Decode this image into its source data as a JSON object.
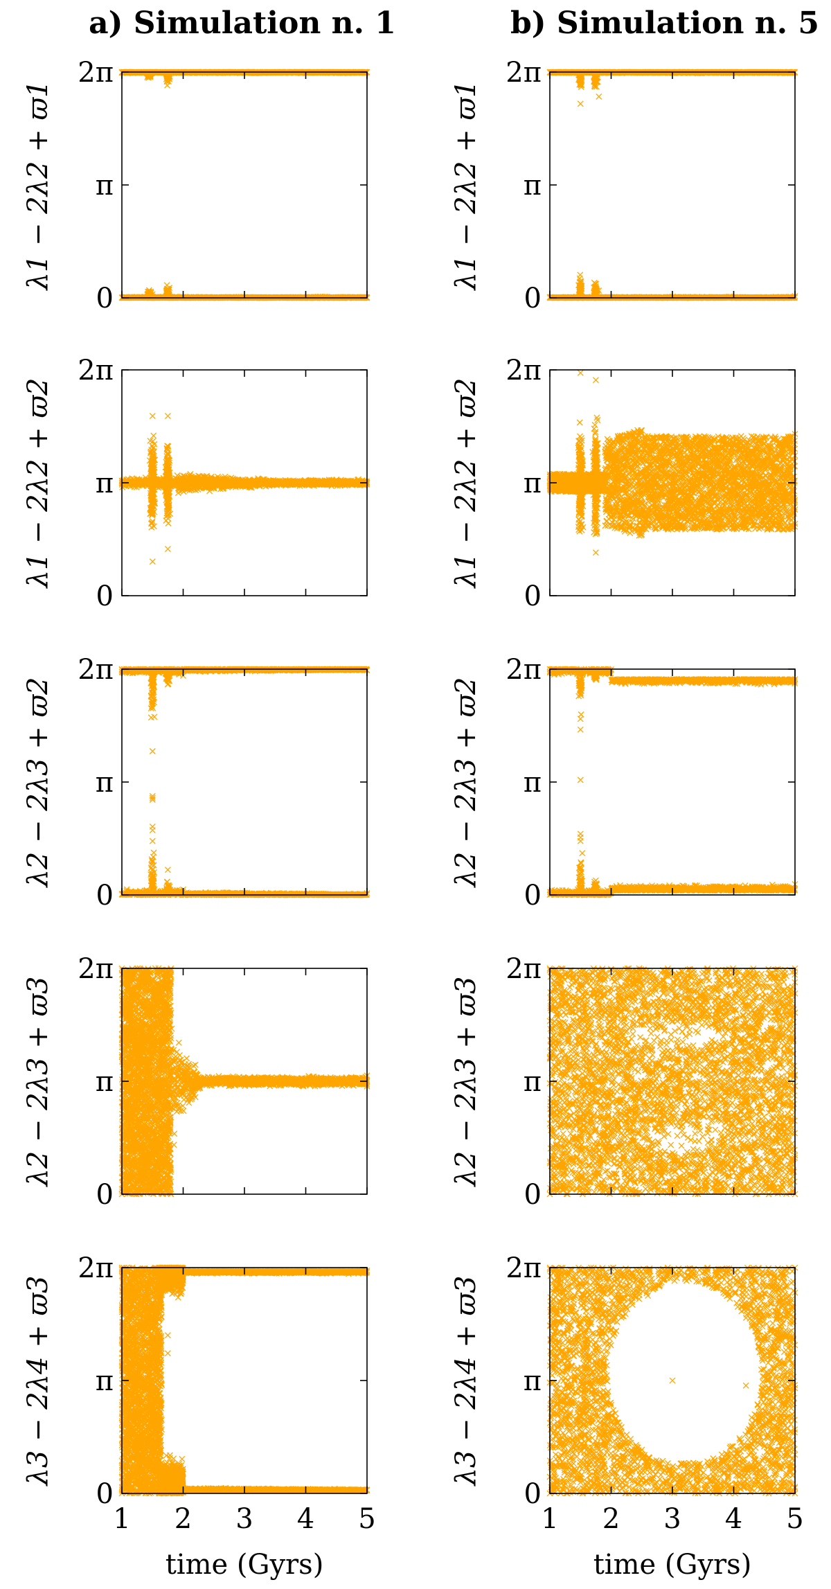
{
  "titles": [
    "a) Simulation n. 1",
    "b) Simulation n. 5"
  ],
  "color": "#FFA500",
  "marker": "x",
  "chart_data": [
    {
      "type": "scatter",
      "column": 0,
      "row": 0,
      "ylabel": "λ1 − 2λ2 + ϖ1",
      "xlabel": "",
      "xlim": [
        1,
        5
      ],
      "ylim": [
        0,
        6.2832
      ],
      "xticks": [
        1,
        2,
        3,
        4,
        5
      ],
      "yticks": [
        "0",
        "π",
        "2π"
      ],
      "pattern": "edges",
      "description_points": [
        [
          1,
          6.28
        ],
        [
          1.45,
          6.2
        ],
        [
          1.75,
          6.1
        ],
        [
          1.5,
          0.1
        ],
        [
          1.75,
          0.1
        ],
        [
          5,
          0.0
        ],
        [
          5,
          6.28
        ]
      ]
    },
    {
      "type": "scatter",
      "column": 1,
      "row": 0,
      "ylabel": "λ1 − 2λ2 + ϖ1",
      "xlabel": "",
      "xlim": [
        1,
        5
      ],
      "ylim": [
        0,
        6.2832
      ],
      "xticks": [
        1,
        2,
        3,
        4,
        5
      ],
      "yticks": [
        "0",
        "π",
        "2π"
      ],
      "pattern": "edges",
      "description_points": [
        [
          1,
          6.28
        ],
        [
          1.5,
          5.4
        ],
        [
          1.8,
          5.6
        ],
        [
          1.5,
          0.1
        ],
        [
          1.8,
          0.2
        ],
        [
          5,
          0.05
        ],
        [
          5,
          6.28
        ]
      ]
    },
    {
      "type": "scatter",
      "column": 0,
      "row": 1,
      "ylabel": "λ1 − 2λ2 + ϖ2",
      "xlabel": "",
      "xlim": [
        1,
        5
      ],
      "ylim": [
        0,
        6.2832
      ],
      "xticks": [
        1,
        2,
        3,
        4,
        5
      ],
      "yticks": [
        "0",
        "π",
        "2π"
      ],
      "pattern": "narrow-band",
      "description_points": [
        [
          1,
          3.14
        ],
        [
          1.5,
          5.0
        ],
        [
          1.5,
          0.95
        ],
        [
          1.75,
          5.0
        ],
        [
          1.75,
          1.3
        ],
        [
          2.5,
          3.14
        ],
        [
          5,
          3.14
        ]
      ]
    },
    {
      "type": "scatter",
      "column": 1,
      "row": 1,
      "ylabel": "λ1 − 2λ2 + ϖ2",
      "xlabel": "",
      "xlim": [
        1,
        5
      ],
      "ylim": [
        0,
        6.2832
      ],
      "xticks": [
        1,
        2,
        3,
        4,
        5
      ],
      "yticks": [
        "0",
        "π",
        "2π"
      ],
      "pattern": "wide-band",
      "description_points": [
        [
          1,
          3.14
        ],
        [
          1.5,
          6.2
        ],
        [
          1.75,
          6.0
        ],
        [
          1.75,
          1.2
        ],
        [
          2.5,
          4.6
        ],
        [
          2.5,
          1.7
        ],
        [
          5,
          4.5
        ],
        [
          5,
          2.0
        ]
      ]
    },
    {
      "type": "scatter",
      "column": 0,
      "row": 2,
      "ylabel": "λ2 − 2λ3 + ϖ2",
      "xlabel": "",
      "xlim": [
        1,
        5
      ],
      "ylim": [
        0,
        6.2832
      ],
      "xticks": [
        1,
        2,
        3,
        4,
        5
      ],
      "yticks": [
        "0",
        "π",
        "2π"
      ],
      "pattern": "edges",
      "description_points": [
        [
          1,
          6.28
        ],
        [
          1.5,
          4.0
        ],
        [
          1.5,
          1.9
        ],
        [
          1.5,
          2.7
        ],
        [
          1.75,
          0.7
        ],
        [
          2,
          6.1
        ],
        [
          2,
          0.15
        ],
        [
          5,
          6.25
        ],
        [
          5,
          0.05
        ]
      ]
    },
    {
      "type": "scatter",
      "column": 1,
      "row": 2,
      "ylabel": "λ2 − 2λ3 + ϖ2",
      "xlabel": "",
      "xlim": [
        1,
        5
      ],
      "ylim": [
        0,
        6.2832
      ],
      "xticks": [
        1,
        2,
        3,
        4,
        5
      ],
      "yticks": [
        "0",
        "π",
        "2π"
      ],
      "pattern": "edges",
      "description_points": [
        [
          1,
          6.28
        ],
        [
          1.5,
          4.9
        ],
        [
          1.5,
          3.2
        ],
        [
          1.5,
          1.6
        ],
        [
          1.75,
          0.4
        ],
        [
          5,
          6.0
        ],
        [
          5,
          0.3
        ]
      ]
    },
    {
      "type": "scatter",
      "column": 0,
      "row": 3,
      "ylabel": "λ2 − 2λ3 + ϖ3",
      "xlabel": "",
      "xlim": [
        1,
        5
      ],
      "ylim": [
        0,
        6.2832
      ],
      "xticks": [
        1,
        2,
        3,
        4,
        5
      ],
      "yticks": [
        "0",
        "π",
        "2π"
      ],
      "pattern": "circulate-then-band",
      "description_points": [
        [
          1,
          0.0
        ],
        [
          1,
          6.28
        ],
        [
          1.8,
          0.0
        ],
        [
          1.8,
          6.28
        ],
        [
          2.2,
          3.6
        ],
        [
          2.2,
          2.7
        ],
        [
          5,
          3.3
        ],
        [
          5,
          3.0
        ]
      ]
    },
    {
      "type": "scatter",
      "column": 1,
      "row": 3,
      "ylabel": "λ2 − 2λ3 + ϖ3",
      "xlabel": "",
      "xlim": [
        1,
        5
      ],
      "ylim": [
        0,
        6.2832
      ],
      "xticks": [
        1,
        2,
        3,
        4,
        5
      ],
      "yticks": [
        "0",
        "π",
        "2π"
      ],
      "pattern": "fill",
      "description_points": [
        [
          1,
          0.0
        ],
        [
          1,
          6.28
        ],
        [
          3,
          3.14
        ],
        [
          5,
          0.0
        ],
        [
          5,
          6.28
        ]
      ]
    },
    {
      "type": "scatter",
      "column": 0,
      "row": 4,
      "ylabel": "λ3 − 2λ4 + ϖ3",
      "xlabel": "time (Gyrs)",
      "xlim": [
        1,
        5
      ],
      "ylim": [
        0,
        6.2832
      ],
      "xticks": [
        1,
        2,
        3,
        4,
        5
      ],
      "yticks": [
        "0",
        "π",
        "2π"
      ],
      "pattern": "circulate-then-edges",
      "description_points": [
        [
          1,
          0.0
        ],
        [
          1,
          6.28
        ],
        [
          1.5,
          3.14
        ],
        [
          1.75,
          4.4
        ],
        [
          1.75,
          3.9
        ],
        [
          2,
          6.15
        ],
        [
          2,
          0.15
        ],
        [
          5,
          6.2
        ],
        [
          5,
          0.1
        ]
      ]
    },
    {
      "type": "scatter",
      "column": 1,
      "row": 4,
      "ylabel": "λ3 − 2λ4 + ϖ3",
      "xlabel": "time (Gyrs)",
      "xlim": [
        1,
        5
      ],
      "ylim": [
        0,
        6.2832
      ],
      "xticks": [
        1,
        2,
        3,
        4,
        5
      ],
      "yticks": [
        "0",
        "π",
        "2π"
      ],
      "pattern": "hole",
      "description_points": [
        [
          1,
          0.0
        ],
        [
          1,
          6.28
        ],
        [
          2.6,
          5.5
        ],
        [
          2.6,
          0.9
        ],
        [
          3,
          3.14
        ],
        [
          4.2,
          3.0
        ],
        [
          4.5,
          2.3
        ],
        [
          5,
          0.0
        ],
        [
          5,
          6.28
        ]
      ]
    }
  ]
}
